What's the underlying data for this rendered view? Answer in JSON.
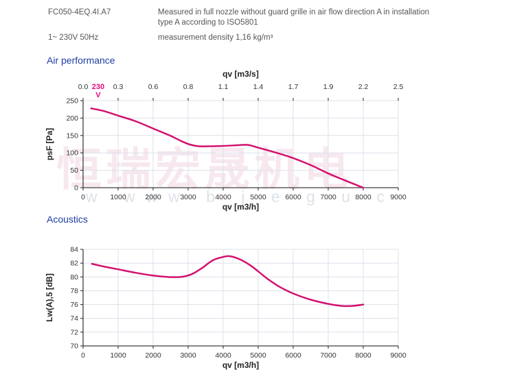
{
  "header": {
    "model": "FC050-4EQ.4I.A7",
    "power": "1~ 230V 50Hz",
    "description_line1": "Measured in full nozzle without guard grille in air flow direction A in installation",
    "description_line2": "type A according to ISO5801",
    "density": "measurement density 1,16 kg/m³"
  },
  "sections": {
    "air_performance": "Air performance",
    "acoustics": "Acoustics"
  },
  "watermark": {
    "cjk": "恒瑞宏晟机电",
    "latin": "w www b j e g u c"
  },
  "colors": {
    "curve": "#d4116e",
    "annotation": "#e5097c",
    "grid": "#dce0ea",
    "axis": "#3f3f3f",
    "tick_text": "#333333",
    "axis_title_text": "#222222",
    "section_title": "#1e3da0"
  },
  "chart_data": [
    {
      "type": "line",
      "title": "Air performance",
      "xlabel": "qv [m3/h]",
      "ylabel": "psF [Pa]",
      "top_axis_label": "qv [m3/s]",
      "top_axis_ticks": [
        "0.0",
        "0.3",
        "0.6",
        "0.8",
        "1.1",
        "1.4",
        "1.7",
        "1.9",
        "2.2",
        "2.5"
      ],
      "xlim": [
        0,
        9000
      ],
      "ylim": [
        0,
        250
      ],
      "xticks": [
        0,
        1000,
        2000,
        3000,
        4000,
        5000,
        6000,
        7000,
        8000,
        9000
      ],
      "yticks": [
        0,
        50,
        100,
        150,
        200,
        250
      ],
      "grid": true,
      "legend_position": "none",
      "annotation": {
        "line1": "230",
        "line2": "V",
        "x": 430
      },
      "series": [
        {
          "name": "230 V",
          "points": [
            [
              230,
              228
            ],
            [
              600,
              220
            ],
            [
              1000,
              207
            ],
            [
              1500,
              191
            ],
            [
              2000,
              170
            ],
            [
              2500,
              149
            ],
            [
              2800,
              134
            ],
            [
              3050,
              124
            ],
            [
              3300,
              119
            ],
            [
              3600,
              119
            ],
            [
              4000,
              120
            ],
            [
              4400,
              122
            ],
            [
              4700,
              123
            ],
            [
              5000,
              115
            ],
            [
              5500,
              101
            ],
            [
              6000,
              85
            ],
            [
              6500,
              65
            ],
            [
              7000,
              41
            ],
            [
              7500,
              20
            ],
            [
              8000,
              0
            ]
          ]
        }
      ]
    },
    {
      "type": "line",
      "title": "Acoustics",
      "xlabel": "qv [m3/h]",
      "ylabel": "Lw(A),5 [dB]",
      "top_axis_label": null,
      "top_axis_ticks": null,
      "xlim": [
        0,
        9000
      ],
      "ylim": [
        70,
        84
      ],
      "xticks": [
        0,
        1000,
        2000,
        3000,
        4000,
        5000,
        6000,
        7000,
        8000,
        9000
      ],
      "yticks": [
        70,
        72,
        74,
        76,
        78,
        80,
        82,
        84
      ],
      "grid": true,
      "legend_position": "none",
      "annotation": null,
      "series": [
        {
          "name": "230 V",
          "points": [
            [
              250,
              81.9
            ],
            [
              600,
              81.5
            ],
            [
              1000,
              81.1
            ],
            [
              1500,
              80.6
            ],
            [
              2000,
              80.2
            ],
            [
              2400,
              80.0
            ],
            [
              2800,
              80.0
            ],
            [
              3100,
              80.4
            ],
            [
              3400,
              81.3
            ],
            [
              3700,
              82.4
            ],
            [
              4000,
              82.9
            ],
            [
              4200,
              83.0
            ],
            [
              4500,
              82.5
            ],
            [
              4800,
              81.6
            ],
            [
              5000,
              80.8
            ],
            [
              5300,
              79.6
            ],
            [
              5600,
              78.6
            ],
            [
              6000,
              77.6
            ],
            [
              6500,
              76.7
            ],
            [
              7000,
              76.1
            ],
            [
              7400,
              75.8
            ],
            [
              7700,
              75.8
            ],
            [
              8000,
              76.0
            ]
          ]
        }
      ]
    }
  ]
}
